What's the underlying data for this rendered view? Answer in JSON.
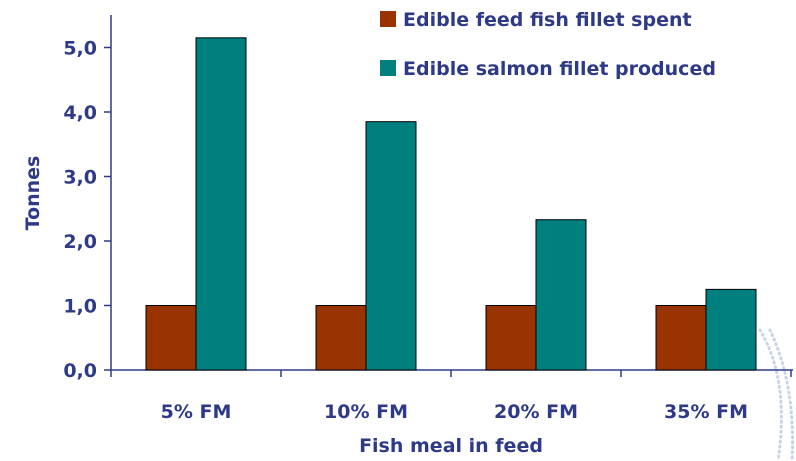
{
  "chart_data": {
    "type": "bar",
    "categories": [
      "5% FM",
      "10% FM",
      "20% FM",
      "35% FM"
    ],
    "series": [
      {
        "name": "Edible feed fish fillet spent",
        "values": [
          1.0,
          1.0,
          1.0,
          1.0
        ]
      },
      {
        "name": "Edible salmon fillet produced",
        "values": [
          5.15,
          3.85,
          2.33,
          1.25
        ]
      }
    ],
    "xlabel": "Fish meal in feed",
    "ylabel": "Tonnes",
    "ylim": [
      0,
      5.5
    ],
    "yticks": [
      {
        "value": 0,
        "label": "0,0"
      },
      {
        "value": 1,
        "label": "1,0"
      },
      {
        "value": 2,
        "label": "2,0"
      },
      {
        "value": 3,
        "label": "3,0"
      },
      {
        "value": 4,
        "label": "4,0"
      },
      {
        "value": 5,
        "label": "5,0"
      }
    ],
    "grid": false,
    "legend_position": "top-right"
  },
  "colors": {
    "series_1": "#993300",
    "series_2": "#007F7F",
    "text": "#2E3A87",
    "axis": "#2E3A87",
    "decor": "#C8D4E6"
  }
}
